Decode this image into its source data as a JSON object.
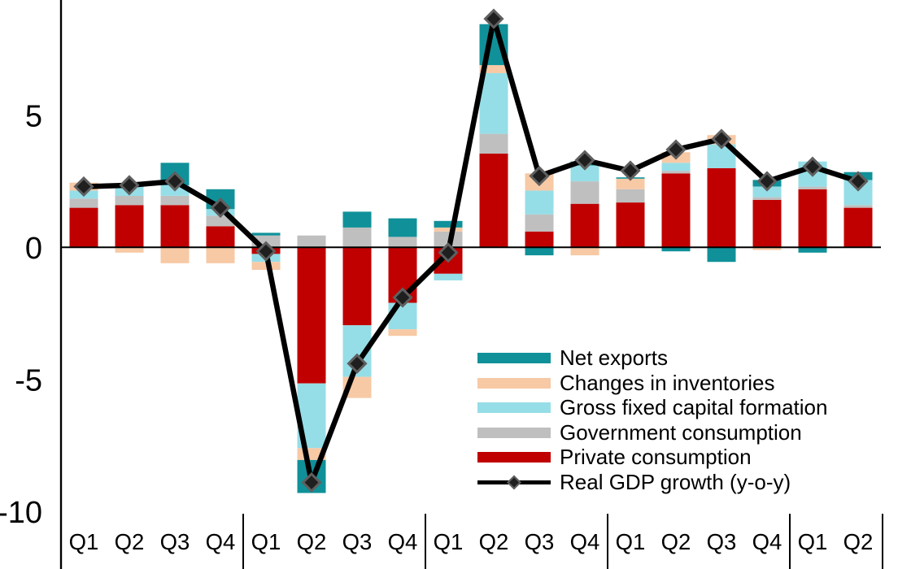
{
  "chart_data": {
    "type": "bar",
    "subtype": "stacked-bar-with-line",
    "title": "",
    "xlabel": "",
    "ylabel": "",
    "ylim": [
      -10.1,
      9.4
    ],
    "grid": false,
    "y_ticks": [
      {
        "value": 5,
        "label": "5"
      },
      {
        "value": 0,
        "label": "0"
      },
      {
        "value": -5,
        "label": "-5"
      },
      {
        "value": -10,
        "label": "-10"
      }
    ],
    "categories": [
      "Q1",
      "Q2",
      "Q3",
      "Q4",
      "Q1",
      "Q2",
      "Q3",
      "Q4",
      "Q1",
      "Q2",
      "Q3",
      "Q4",
      "Q1",
      "Q2",
      "Q3",
      "Q4",
      "Q1",
      "Q2"
    ],
    "group_separators_after_index": [
      3,
      7,
      11,
      15,
      17
    ],
    "series": [
      {
        "name": "Private consumption",
        "color": "#C00000",
        "values": [
          1.5,
          1.6,
          1.6,
          0.8,
          -0.25,
          -5.15,
          -2.95,
          -2.1,
          -1.0,
          3.55,
          0.6,
          1.65,
          1.7,
          2.8,
          3.0,
          1.8,
          2.2,
          1.5
        ]
      },
      {
        "name": "Government consumption",
        "color": "#BFBFBF",
        "values": [
          0.35,
          0.35,
          0.35,
          0.4,
          0.45,
          0.45,
          0.75,
          0.4,
          0.6,
          0.75,
          0.65,
          0.85,
          0.5,
          0.1,
          0.0,
          0.1,
          0.1,
          0.1
        ]
      },
      {
        "name": "Gross fixed capital formation",
        "color": "#96DEE7",
        "values": [
          0.3,
          0.35,
          0.4,
          0.25,
          -0.3,
          -2.45,
          -1.95,
          -1.0,
          -0.25,
          2.3,
          0.9,
          0.6,
          0.0,
          0.3,
          0.9,
          0.4,
          0.95,
          0.95
        ]
      },
      {
        "name": "Changes in inventories",
        "color": "#F7C9A5",
        "values": [
          0.3,
          -0.2,
          -0.6,
          -0.6,
          -0.3,
          -0.45,
          -0.8,
          -0.25,
          0.15,
          0.3,
          0.65,
          -0.3,
          0.4,
          0.4,
          0.35,
          -0.1,
          0.0,
          0.0
        ]
      },
      {
        "name": "Net exports",
        "color": "#109199",
        "values": [
          0.0,
          0.1,
          0.85,
          0.75,
          0.1,
          -1.25,
          0.6,
          0.7,
          0.25,
          1.55,
          -0.3,
          0.15,
          0.05,
          -0.15,
          -0.55,
          0.25,
          -0.2,
          0.3
        ]
      }
    ],
    "line_series": {
      "name": "Real GDP growth (y-o-y)",
      "color": "#000000",
      "marker": "diamond",
      "marker_fill": "#1f1f1f",
      "marker_stroke": "#5f5f5f",
      "values": [
        2.3,
        2.35,
        2.5,
        1.5,
        -0.15,
        -8.9,
        -4.4,
        -1.9,
        -0.2,
        8.65,
        2.7,
        3.3,
        2.9,
        3.7,
        4.1,
        2.5,
        3.05,
        2.5
      ]
    },
    "legend_position": "inside-lower-right"
  },
  "legend": {
    "items": [
      {
        "label": "Net exports",
        "color": "#109199",
        "kind": "box"
      },
      {
        "label": "Changes in inventories",
        "color": "#F7C9A5",
        "kind": "box"
      },
      {
        "label": "Gross fixed capital formation",
        "color": "#96DEE7",
        "kind": "box"
      },
      {
        "label": "Government consumption",
        "color": "#BFBFBF",
        "kind": "box"
      },
      {
        "label": "Private consumption",
        "color": "#C00000",
        "kind": "box"
      },
      {
        "label": "Real GDP growth (y-o-y)",
        "color": "#000000",
        "kind": "line-diamond"
      }
    ]
  },
  "axis_colors": {
    "axis_line": "#000000",
    "tick_label": "#000000"
  }
}
